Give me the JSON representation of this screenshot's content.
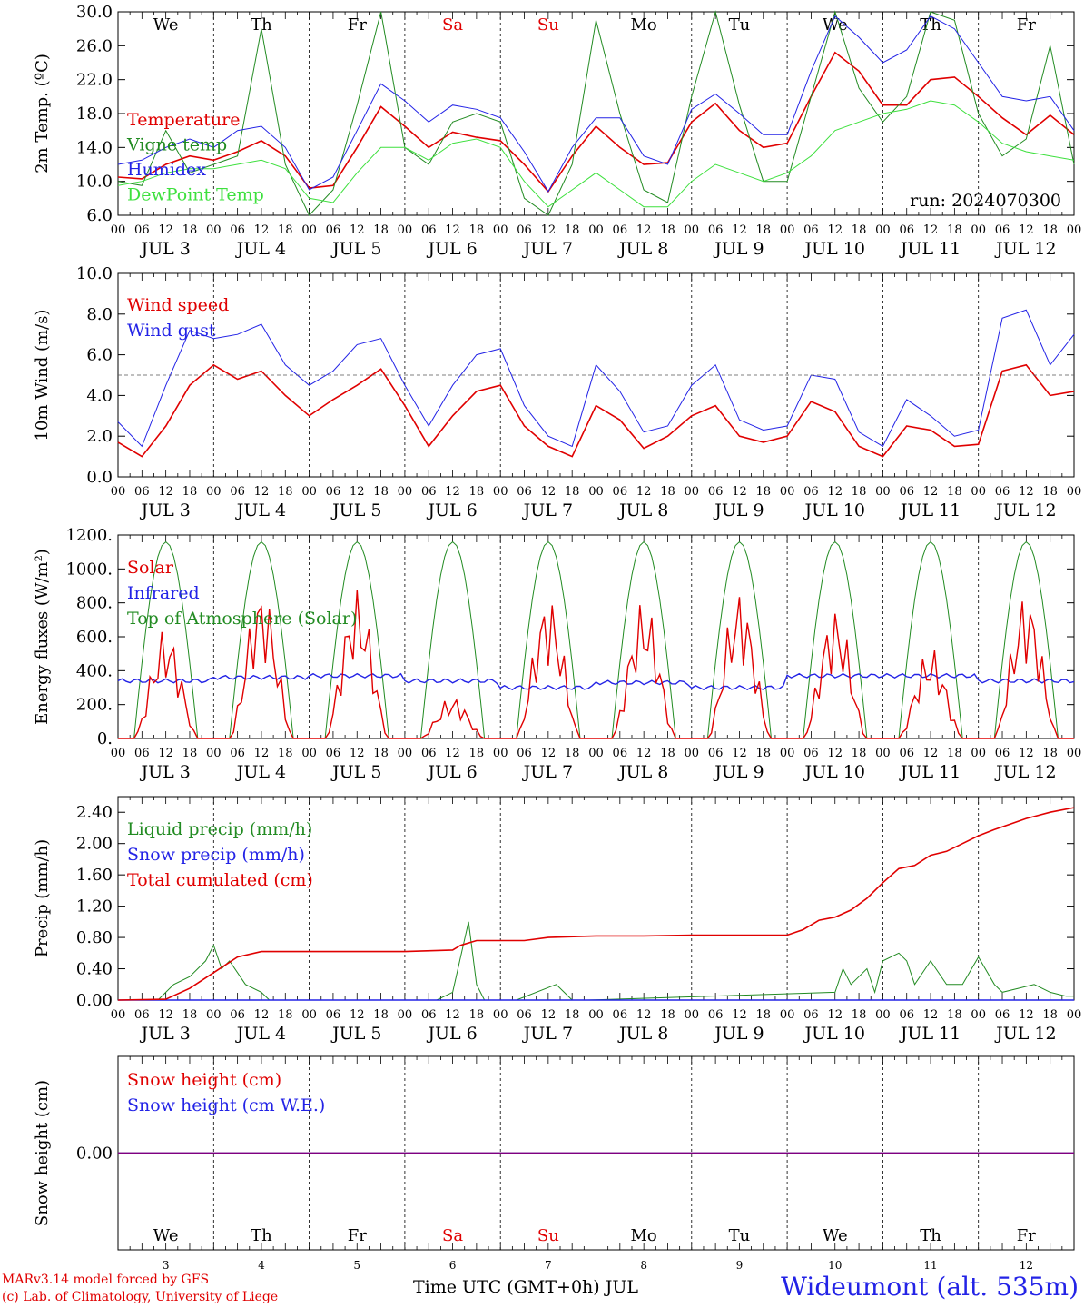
{
  "days": [
    "3",
    "4",
    "5",
    "6",
    "7",
    "8",
    "9",
    "10",
    "11",
    "12"
  ],
  "weekdays": [
    {
      "label": "We",
      "color": "#000000"
    },
    {
      "label": "Th",
      "color": "#000000"
    },
    {
      "label": "Fr",
      "color": "#000000"
    },
    {
      "label": "Sa",
      "color": "#e00000"
    },
    {
      "label": "Su",
      "color": "#e00000"
    },
    {
      "label": "Mo",
      "color": "#000000"
    },
    {
      "label": "Tu",
      "color": "#000000"
    },
    {
      "label": "We",
      "color": "#000000"
    },
    {
      "label": "Th",
      "color": "#000000"
    },
    {
      "label": "Fr",
      "color": "#000000"
    }
  ],
  "hour_ticks": [
    "00",
    "06",
    "12",
    "18"
  ],
  "month": "JUL",
  "colors": {
    "red": "#e00000",
    "blue": "#2323e6",
    "green": "#228b22",
    "lightgreen": "#3ee03e",
    "purple": "#800080"
  },
  "footer": {
    "model": "MARv3.14 model forced by GFS",
    "lab": "(c) Lab. of Climatology, University of Liege",
    "xtitle": "Time UTC (GMT+0h) JUL",
    "station": "Wideumont (alt. 535m)"
  },
  "chart_data": [
    {
      "type": "line",
      "ylabel": "2m Temp. (ºC)",
      "ylim": [
        6,
        30
      ],
      "yticks": [
        "6.0",
        "10.0",
        "14.0",
        "18.0",
        "22.0",
        "26.0",
        "30.0"
      ],
      "annotation": "run: 2024070300",
      "grid": false,
      "x_unit": "hours since JUL 3 00 UTC",
      "series": [
        {
          "name": "Temperature",
          "color": "red",
          "x": [
            0,
            6,
            12,
            18,
            24,
            30,
            36,
            42,
            48,
            54,
            60,
            66,
            72,
            78,
            84,
            90,
            96,
            102,
            108,
            114,
            120,
            126,
            132,
            138,
            144,
            150,
            156,
            162,
            168,
            174,
            180,
            186,
            192,
            198,
            204,
            210,
            216,
            222,
            228,
            234,
            240
          ],
          "y": [
            10.5,
            10.3,
            12.0,
            13.0,
            12.5,
            13.5,
            14.8,
            13.0,
            9.2,
            9.5,
            14.0,
            18.8,
            16.5,
            14.0,
            15.8,
            15.2,
            14.8,
            12.0,
            8.8,
            13.0,
            16.5,
            14.0,
            12.0,
            12.2,
            17.0,
            19.2,
            16.0,
            14.0,
            14.5,
            20.0,
            25.2,
            23.0,
            19.0,
            19.0,
            22.0,
            22.3,
            20.0,
            17.5,
            15.5,
            17.8,
            15.5
          ]
        },
        {
          "name": "Vigne temp",
          "color": "green",
          "x": [
            0,
            6,
            12,
            18,
            24,
            30,
            36,
            42,
            48,
            54,
            60,
            66,
            72,
            78,
            84,
            90,
            96,
            102,
            108,
            114,
            120,
            126,
            132,
            138,
            144,
            150,
            156,
            162,
            168,
            174,
            180,
            186,
            192,
            198,
            204,
            210,
            216,
            222,
            228,
            234,
            240
          ],
          "y": [
            10.0,
            9.5,
            16.0,
            11.0,
            12.0,
            13.0,
            28.0,
            12.0,
            6.0,
            9.0,
            19.0,
            30.0,
            14.0,
            12.0,
            17.0,
            18.0,
            17.0,
            8.0,
            6.0,
            12.0,
            29.0,
            18.0,
            9.0,
            7.5,
            20.0,
            30.0,
            19.0,
            10.0,
            10.0,
            20.0,
            30.0,
            21.0,
            17.0,
            20.0,
            30.0,
            29.0,
            18.0,
            13.0,
            15.0,
            26.0,
            12.0
          ]
        },
        {
          "name": "Humidex",
          "color": "blue",
          "x": [
            0,
            6,
            12,
            18,
            24,
            30,
            36,
            42,
            48,
            54,
            60,
            66,
            72,
            78,
            84,
            90,
            96,
            102,
            108,
            114,
            120,
            126,
            132,
            138,
            144,
            150,
            156,
            162,
            168,
            174,
            180,
            186,
            192,
            198,
            204,
            210,
            216,
            222,
            228,
            234,
            240
          ],
          "y": [
            12.0,
            12.5,
            14.0,
            15.0,
            14.0,
            16.0,
            16.5,
            14.0,
            9.0,
            10.5,
            16.0,
            21.5,
            19.5,
            17.0,
            19.0,
            18.5,
            17.5,
            13.5,
            8.8,
            14.0,
            17.5,
            17.5,
            13.0,
            12.0,
            18.5,
            20.3,
            18.0,
            15.5,
            15.5,
            23.0,
            29.5,
            27.0,
            24.0,
            25.5,
            29.5,
            28.0,
            24.0,
            20.0,
            19.5,
            20.0,
            16.0
          ]
        },
        {
          "name": "DewPoint Temp",
          "color": "lightgreen",
          "x": [
            0,
            6,
            12,
            18,
            24,
            30,
            36,
            42,
            48,
            54,
            60,
            66,
            72,
            78,
            84,
            90,
            96,
            102,
            108,
            114,
            120,
            126,
            132,
            138,
            144,
            150,
            156,
            162,
            168,
            174,
            180,
            186,
            192,
            198,
            204,
            210,
            216,
            222,
            228,
            234,
            240
          ],
          "y": [
            9.5,
            10.0,
            11.0,
            11.5,
            11.5,
            12.0,
            12.5,
            11.5,
            8.0,
            7.5,
            11.0,
            14.0,
            14.0,
            12.5,
            14.5,
            15.0,
            14.0,
            10.0,
            7.0,
            9.0,
            11.0,
            9.0,
            7.0,
            7.0,
            10.0,
            12.0,
            11.0,
            10.0,
            11.0,
            13.0,
            16.0,
            17.0,
            18.0,
            18.5,
            19.5,
            19.0,
            17.0,
            14.5,
            13.5,
            13.0,
            12.5
          ]
        }
      ]
    },
    {
      "type": "line",
      "ylabel": "10m Wind (m/s)",
      "ylim": [
        0,
        10
      ],
      "yticks": [
        "0.0",
        "2.0",
        "4.0",
        "6.0",
        "8.0",
        "10.0"
      ],
      "reference_line": 5.0,
      "x_unit": "hours since JUL 3 00 UTC",
      "series": [
        {
          "name": "Wind speed",
          "color": "red",
          "x": [
            0,
            6,
            12,
            18,
            24,
            30,
            36,
            42,
            48,
            54,
            60,
            66,
            72,
            78,
            84,
            90,
            96,
            102,
            108,
            114,
            120,
            126,
            132,
            138,
            144,
            150,
            156,
            162,
            168,
            174,
            180,
            186,
            192,
            198,
            204,
            210,
            216,
            222,
            228,
            234,
            240
          ],
          "y": [
            1.7,
            1.0,
            2.5,
            4.5,
            5.5,
            4.8,
            5.2,
            4.0,
            3.0,
            3.8,
            4.5,
            5.3,
            3.5,
            1.5,
            3.0,
            4.2,
            4.5,
            2.5,
            1.5,
            1.0,
            3.5,
            2.8,
            1.4,
            2.0,
            3.0,
            3.5,
            2.0,
            1.7,
            2.0,
            3.7,
            3.2,
            1.5,
            1.0,
            2.5,
            2.3,
            1.5,
            1.6,
            5.2,
            5.5,
            4.0,
            4.2
          ]
        },
        {
          "name": "Wind gust",
          "color": "blue",
          "x": [
            0,
            6,
            12,
            18,
            24,
            30,
            36,
            42,
            48,
            54,
            60,
            66,
            72,
            78,
            84,
            90,
            96,
            102,
            108,
            114,
            120,
            126,
            132,
            138,
            144,
            150,
            156,
            162,
            168,
            174,
            180,
            186,
            192,
            198,
            204,
            210,
            216,
            222,
            228,
            234,
            240
          ],
          "y": [
            2.7,
            1.5,
            4.5,
            7.2,
            6.8,
            7.0,
            7.5,
            5.5,
            4.5,
            5.2,
            6.5,
            6.8,
            4.5,
            2.5,
            4.5,
            6.0,
            6.3,
            3.5,
            2.0,
            1.5,
            5.5,
            4.2,
            2.2,
            2.5,
            4.5,
            5.5,
            2.8,
            2.3,
            2.5,
            5.0,
            4.8,
            2.2,
            1.5,
            3.8,
            3.0,
            2.0,
            2.3,
            7.8,
            8.2,
            5.5,
            7.0
          ]
        }
      ]
    },
    {
      "type": "line",
      "ylabel": "Energy fluxes (W/m²)",
      "ylim": [
        0,
        1200
      ],
      "yticks": [
        "0.",
        "200.",
        "400.",
        "600.",
        "800.",
        "1000.",
        "1200."
      ],
      "x_unit": "hours since JUL 3 00 UTC",
      "daily_solar_peak": [
        650,
        900,
        880,
        250,
        850,
        820,
        880,
        780,
        540,
        870
      ],
      "infrared_level": [
        340,
        360,
        370,
        340,
        300,
        330,
        300,
        370,
        370,
        340
      ],
      "series": [
        {
          "name": "Solar",
          "color": "red"
        },
        {
          "name": "Infrared",
          "color": "blue"
        },
        {
          "name": "Top of Atmosphere (Solar)",
          "color": "green",
          "peak": 1160
        }
      ]
    },
    {
      "type": "line",
      "ylabel": "Precip (mm/h)",
      "ylim": [
        0,
        2.6
      ],
      "yticks": [
        "0.00",
        "0.40",
        "0.80",
        "1.20",
        "1.60",
        "2.00",
        "2.40"
      ],
      "x_unit": "hours since JUL 3 00 UTC",
      "series": [
        {
          "name": "Liquid precip (mm/h)",
          "color": "green",
          "x": [
            0,
            10,
            14,
            18,
            22,
            24,
            26,
            28,
            32,
            36,
            38,
            40,
            80,
            84,
            88,
            90,
            92,
            94,
            100,
            110,
            112,
            114,
            118,
            180,
            182,
            184,
            188,
            190,
            192,
            196,
            198,
            200,
            204,
            208,
            212,
            216,
            220,
            222,
            226,
            230,
            234,
            238,
            240
          ],
          "y": [
            0,
            0,
            0.2,
            0.3,
            0.5,
            0.7,
            0.4,
            0.5,
            0.2,
            0.1,
            0,
            0,
            0,
            0.1,
            1.0,
            0.2,
            0,
            0,
            0,
            0.2,
            0.1,
            0,
            0,
            0.1,
            0.4,
            0.2,
            0.4,
            0.1,
            0.5,
            0.6,
            0.5,
            0.2,
            0.5,
            0.2,
            0.2,
            0.55,
            0.2,
            0.1,
            0.15,
            0.2,
            0.1,
            0.05,
            0.05
          ]
        },
        {
          "name": "Snow precip (mm/h)",
          "color": "blue",
          "x": [
            0,
            240
          ],
          "y": [
            0,
            0
          ]
        },
        {
          "name": "Total cumulated (cm)",
          "color": "red",
          "x": [
            0,
            12,
            18,
            24,
            30,
            36,
            48,
            60,
            72,
            84,
            86,
            90,
            96,
            102,
            108,
            120,
            132,
            144,
            156,
            168,
            172,
            176,
            180,
            184,
            188,
            192,
            196,
            200,
            204,
            208,
            212,
            216,
            220,
            224,
            228,
            234,
            240
          ],
          "y": [
            0,
            0.01,
            0.15,
            0.35,
            0.55,
            0.62,
            0.62,
            0.62,
            0.62,
            0.64,
            0.7,
            0.76,
            0.76,
            0.76,
            0.8,
            0.82,
            0.82,
            0.83,
            0.83,
            0.83,
            0.9,
            1.02,
            1.06,
            1.15,
            1.3,
            1.5,
            1.68,
            1.72,
            1.85,
            1.9,
            2.0,
            2.1,
            2.18,
            2.25,
            2.32,
            2.4,
            2.46
          ]
        }
      ]
    },
    {
      "type": "line",
      "ylabel": "Snow height (cm)",
      "ylim": [
        -1,
        1
      ],
      "yticks": [
        "0.00"
      ],
      "x_unit": "hours since JUL 3 00 UTC",
      "series": [
        {
          "name": "Snow height (cm)",
          "color": "red",
          "x": [
            0,
            240
          ],
          "y": [
            0,
            0
          ]
        },
        {
          "name": "Snow height (cm W.E.)",
          "color": "blue",
          "x": [
            0,
            240
          ],
          "y": [
            0,
            0
          ]
        }
      ]
    }
  ]
}
